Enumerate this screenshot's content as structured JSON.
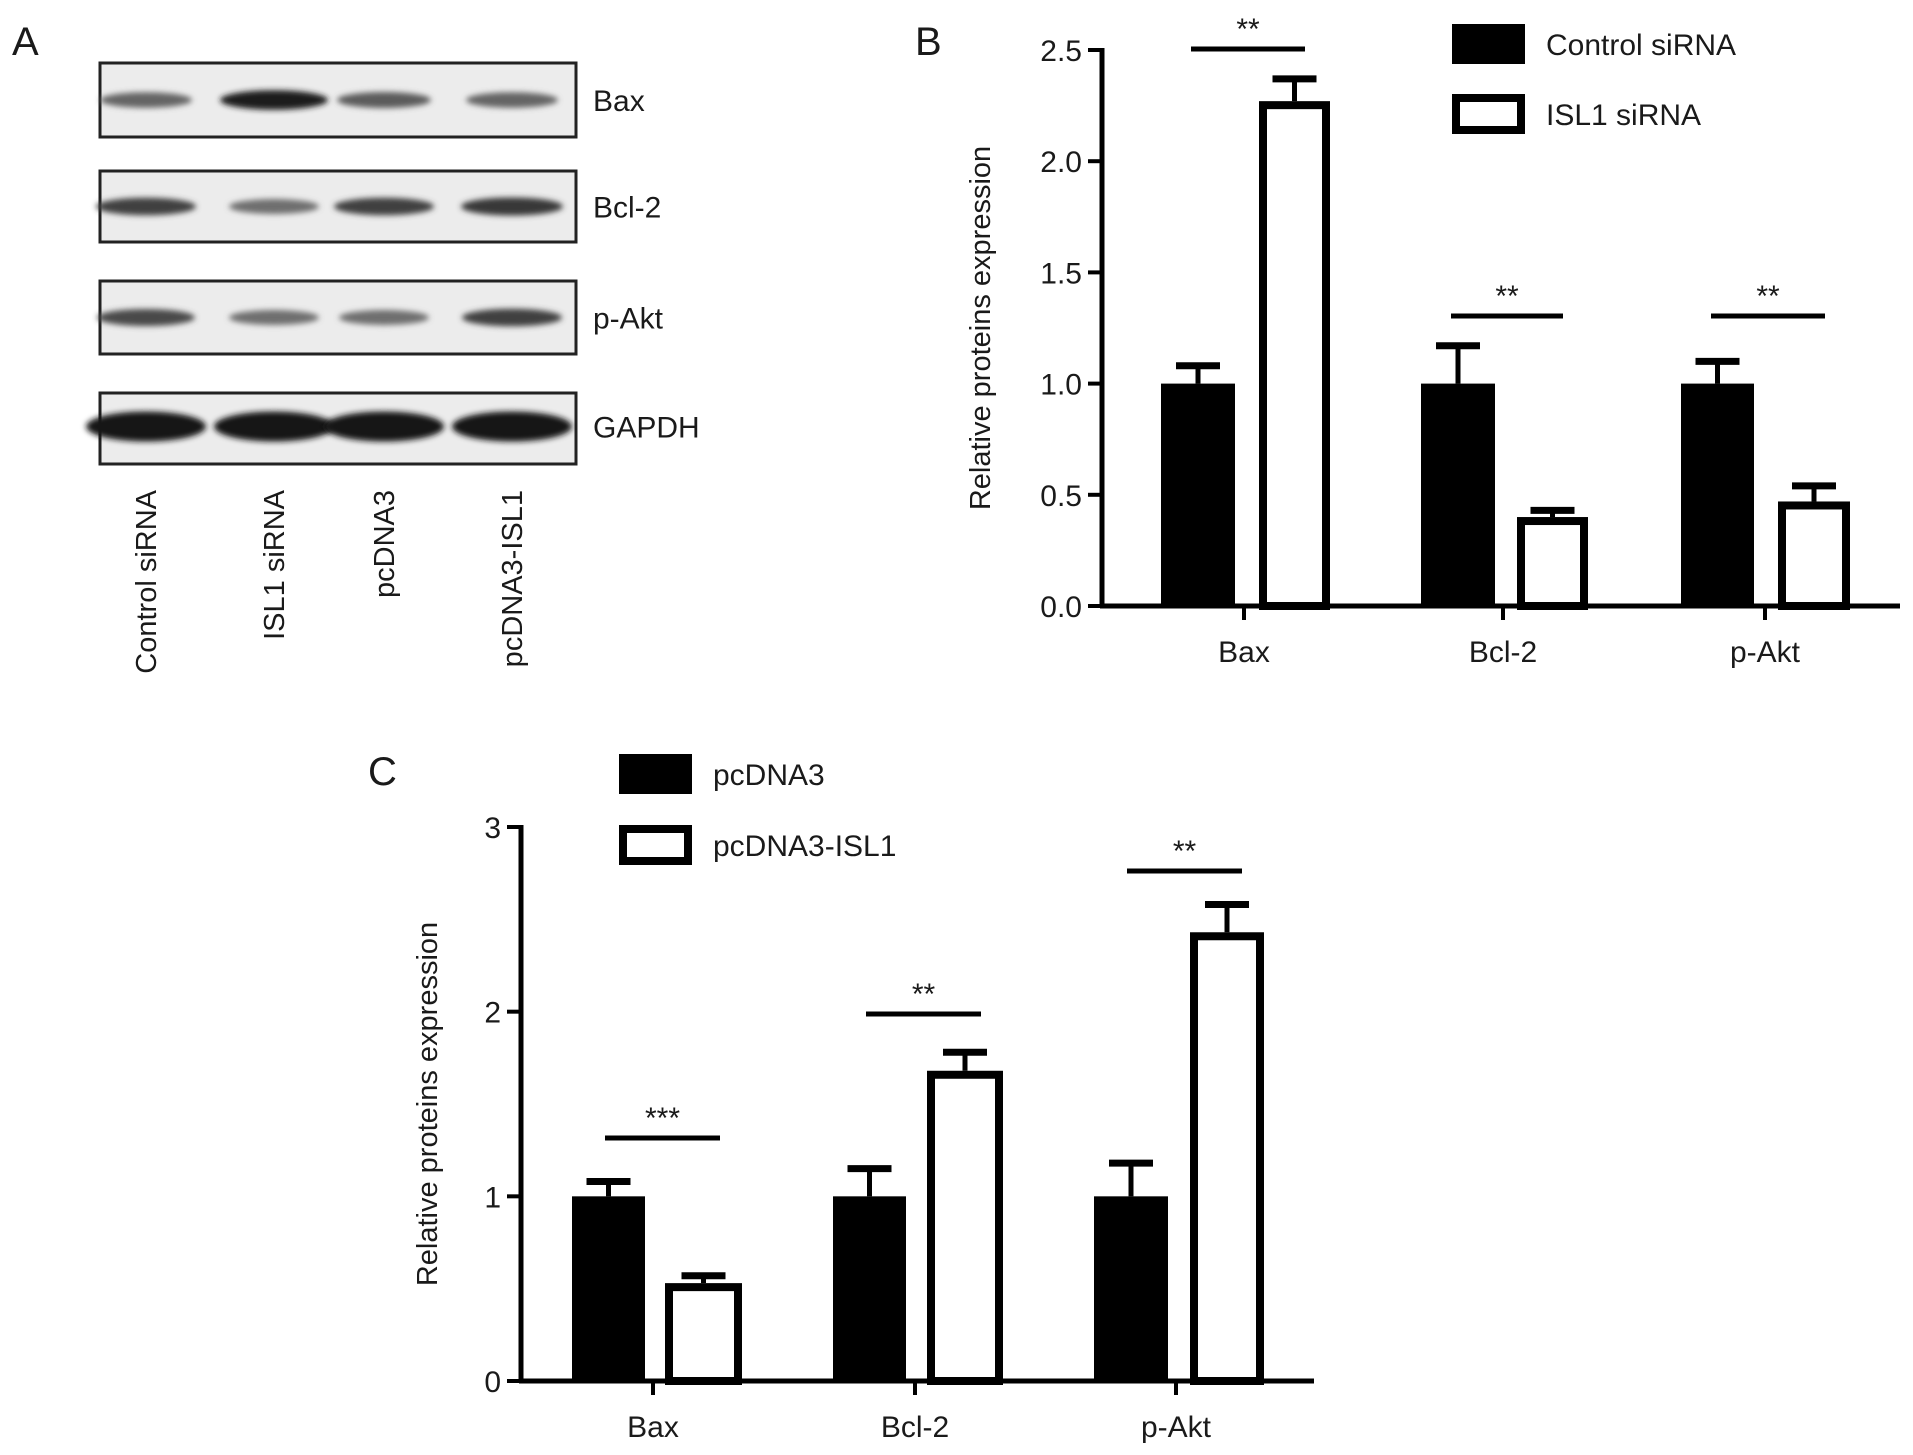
{
  "panel_labels": {
    "a": "A",
    "b": "B",
    "c": "C"
  },
  "western_blot": {
    "proteins": [
      "Bax",
      "Bcl-2",
      "p-Akt",
      "GAPDH"
    ],
    "lanes": [
      "Control siRNA",
      "ISL1 siRNA",
      "pcDNA3",
      "pcDNA3-ISL1"
    ],
    "band_intensity": [
      [
        0.55,
        0.95,
        0.6,
        0.55
      ],
      [
        0.75,
        0.5,
        0.75,
        0.8
      ],
      [
        0.7,
        0.5,
        0.5,
        0.75
      ],
      [
        1.0,
        1.0,
        1.0,
        1.0
      ]
    ]
  },
  "chart_data": [
    {
      "type": "bar",
      "panel": "B",
      "categories": [
        "Bax",
        "Bcl-2",
        "p-Akt"
      ],
      "series": [
        {
          "name": "Control siRNA",
          "values": [
            1.0,
            1.0,
            1.0
          ],
          "errors": [
            0.08,
            0.17,
            0.1
          ],
          "fill": "#000000"
        },
        {
          "name": "ISL1 siRNA",
          "values": [
            2.27,
            0.4,
            0.47
          ],
          "errors": [
            0.1,
            0.03,
            0.07
          ],
          "fill": "#ffffff"
        }
      ],
      "significance": [
        "**",
        "**",
        "**"
      ],
      "ylabel": "Relative proteins expression",
      "xlabel": "",
      "ylim": [
        0,
        2.5
      ],
      "yticks": [
        "0.0",
        "0.5",
        "1.0",
        "1.5",
        "2.0",
        "2.5"
      ],
      "legend": "top-right"
    },
    {
      "type": "bar",
      "panel": "C",
      "categories": [
        "Bax",
        "Bcl-2",
        "p-Akt"
      ],
      "series": [
        {
          "name": "pcDNA3",
          "values": [
            1.0,
            1.0,
            1.0
          ],
          "errors": [
            0.08,
            0.15,
            0.18
          ],
          "fill": "#000000"
        },
        {
          "name": "pcDNA3-ISL1",
          "values": [
            0.53,
            1.68,
            2.43
          ],
          "errors": [
            0.04,
            0.1,
            0.15
          ],
          "fill": "#ffffff"
        }
      ],
      "significance": [
        "***",
        "**",
        "**"
      ],
      "ylabel": "Relative proteins expression",
      "xlabel": "",
      "ylim": [
        0,
        3
      ],
      "yticks": [
        "0",
        "1",
        "2",
        "3"
      ],
      "legend": "top-left"
    }
  ]
}
